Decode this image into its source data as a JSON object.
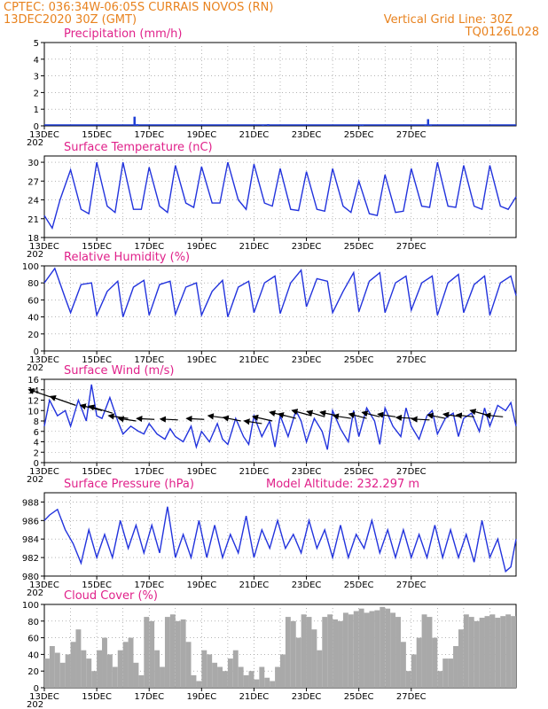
{
  "header": {
    "line1": "CPTEC:   036:34W-06:05S   CURRAIS NOVOS (RN)",
    "line2": "13DEC2020 30Z (GMT)",
    "grid_note": "Vertical Grid Line: 30Z",
    "run_code": "TQ0126L028"
  },
  "x_axis": {
    "labels": [
      "13DEC",
      "15DEC",
      "17DEC",
      "19DEC",
      "21DEC",
      "23DEC",
      "25DEC",
      "27DEC"
    ],
    "year_fragment": "202"
  },
  "colors": {
    "header": "#e8821e",
    "title": "#e0218a",
    "line": "#2233dd",
    "bar": "#1f3fd6",
    "cloud": "#a9a9a9",
    "grid": "#888888"
  },
  "chart_data": [
    {
      "type": "bar",
      "title": "Precipitation (mm/h)",
      "ylim": [
        0,
        5
      ],
      "yticks": [
        0,
        1,
        2,
        3,
        4,
        5
      ],
      "x_unit": "days since 13DEC",
      "x": [
        3.4,
        3.5,
        8.3,
        8.5,
        12.0,
        12.1,
        14.5,
        14.6,
        14.7
      ],
      "values": [
        0.55,
        0.1,
        0.05,
        0.1,
        0.05,
        0.03,
        0.05,
        0.4,
        0.05
      ]
    },
    {
      "type": "line",
      "title": "Surface Temperature (nC)",
      "ylim": [
        18,
        31
      ],
      "yticks": [
        18,
        21,
        24,
        27,
        30
      ],
      "x": [
        0.0,
        0.3,
        0.6,
        1.0,
        1.4,
        1.7,
        2.0,
        2.4,
        2.7,
        3.0,
        3.4,
        3.7,
        4.0,
        4.4,
        4.7,
        5.0,
        5.4,
        5.7,
        6.0,
        6.4,
        6.7,
        7.0,
        7.4,
        7.7,
        8.0,
        8.4,
        8.7,
        9.0,
        9.4,
        9.7,
        10.0,
        10.4,
        10.7,
        11.0,
        11.4,
        11.7,
        12.0,
        12.4,
        12.7,
        13.0,
        13.4,
        13.7,
        14.0,
        14.4,
        14.7,
        15.0,
        15.4,
        15.7,
        16.0,
        16.4,
        16.7,
        17.0,
        17.4,
        17.7,
        18.0
      ],
      "values": [
        21.5,
        19.5,
        24.0,
        28.8,
        22.5,
        21.8,
        30.0,
        23.0,
        22.0,
        30.0,
        22.5,
        22.5,
        29.2,
        23.0,
        22.0,
        29.5,
        23.5,
        22.8,
        29.3,
        23.5,
        23.5,
        30.0,
        24.0,
        22.5,
        29.7,
        23.5,
        23.0,
        29.0,
        22.5,
        22.3,
        28.5,
        22.5,
        22.2,
        29.0,
        23.0,
        22.0,
        27.0,
        21.8,
        21.5,
        28.0,
        22.0,
        22.2,
        29.0,
        23.0,
        22.8,
        30.0,
        23.0,
        22.8,
        29.5,
        23.0,
        22.5,
        29.5,
        23.0,
        22.5,
        24.5
      ]
    },
    {
      "type": "line",
      "title": "Relative Humidity (%)",
      "ylim": [
        0,
        100
      ],
      "yticks": [
        0,
        20,
        40,
        60,
        80,
        100
      ],
      "x": [
        0.0,
        0.4,
        0.8,
        1.0,
        1.4,
        1.8,
        2.0,
        2.4,
        2.8,
        3.0,
        3.4,
        3.8,
        4.0,
        4.4,
        4.8,
        5.0,
        5.4,
        5.8,
        6.0,
        6.4,
        6.8,
        7.0,
        7.4,
        7.8,
        8.0,
        8.4,
        8.8,
        9.0,
        9.4,
        9.8,
        10.0,
        10.4,
        10.8,
        11.0,
        11.4,
        11.8,
        12.0,
        12.4,
        12.8,
        13.0,
        13.4,
        13.8,
        14.0,
        14.4,
        14.8,
        15.0,
        15.4,
        15.8,
        16.0,
        16.4,
        16.8,
        17.0,
        17.4,
        17.8,
        18.0
      ],
      "values": [
        80,
        97,
        62,
        45,
        78,
        80,
        42,
        70,
        82,
        40,
        75,
        83,
        42,
        78,
        82,
        43,
        75,
        80,
        42,
        70,
        83,
        40,
        75,
        82,
        45,
        80,
        88,
        44,
        80,
        95,
        52,
        85,
        82,
        45,
        70,
        92,
        46,
        82,
        92,
        45,
        80,
        88,
        48,
        80,
        88,
        42,
        80,
        90,
        45,
        78,
        88,
        42,
        80,
        88,
        65
      ]
    },
    {
      "type": "line",
      "title": "Surface Wind (m/s)",
      "ylim": [
        0,
        16
      ],
      "yticks": [
        0,
        2,
        4,
        6,
        8,
        10,
        12,
        14,
        16
      ],
      "x": [
        0.0,
        0.2,
        0.5,
        0.8,
        1.0,
        1.3,
        1.6,
        1.8,
        2.0,
        2.2,
        2.5,
        2.8,
        3.0,
        3.3,
        3.6,
        3.8,
        4.0,
        4.3,
        4.6,
        4.8,
        5.0,
        5.3,
        5.6,
        5.8,
        6.0,
        6.3,
        6.6,
        6.8,
        7.0,
        7.3,
        7.6,
        7.8,
        8.0,
        8.3,
        8.6,
        8.8,
        9.0,
        9.3,
        9.6,
        9.8,
        10.0,
        10.3,
        10.6,
        10.8,
        11.0,
        11.3,
        11.6,
        11.8,
        12.0,
        12.3,
        12.6,
        12.8,
        13.0,
        13.3,
        13.6,
        13.8,
        14.0,
        14.3,
        14.6,
        14.8,
        15.0,
        15.3,
        15.6,
        15.8,
        16.0,
        16.3,
        16.6,
        16.8,
        17.0,
        17.3,
        17.6,
        17.8,
        18.0
      ],
      "values": [
        7.0,
        12.0,
        9.0,
        10.0,
        7.0,
        12.0,
        8.0,
        15.0,
        9.0,
        8.5,
        12.5,
        8.0,
        5.5,
        7.0,
        6.0,
        5.5,
        7.5,
        5.5,
        4.5,
        6.5,
        5.0,
        4.0,
        7.0,
        3.0,
        6.0,
        4.0,
        7.5,
        4.5,
        3.5,
        8.5,
        5.0,
        3.5,
        9.0,
        5.0,
        8.0,
        3.0,
        9.0,
        5.0,
        10.0,
        8.0,
        4.0,
        8.5,
        6.0,
        2.5,
        10.0,
        6.5,
        4.0,
        10.0,
        5.0,
        10.5,
        8.0,
        3.5,
        10.5,
        7.0,
        5.0,
        10.5,
        7.0,
        4.5,
        9.0,
        10.0,
        5.5,
        8.5,
        9.5,
        5.0,
        8.5,
        9.5,
        6.0,
        10.5,
        7.0,
        11.0,
        10.0,
        11.5,
        7.0
      ],
      "wind_vectors": {
        "x": [
          0.3,
          1.2,
          2.2,
          2.6,
          3.2,
          3.5,
          4.2,
          5.1,
          6.1,
          7.0,
          7.5,
          8.3,
          8.7,
          9.2,
          9.6,
          10.2,
          10.7,
          11.2,
          11.7,
          12.3,
          12.8,
          13.4,
          14.1,
          14.7,
          15.3,
          15.9,
          16.4,
          17.0,
          17.5
        ],
        "u": [
          -1.2,
          -1.3,
          -1.1,
          -1.2,
          -1.0,
          -0.9,
          -0.9,
          -0.9,
          -0.9,
          -1.0,
          -0.9,
          -0.9,
          -1.0,
          -0.8,
          -0.9,
          -1.0,
          -0.9,
          -0.9,
          -0.9,
          -0.9,
          -0.9,
          -0.9,
          -0.9,
          -0.9,
          -0.9,
          -0.9,
          -0.9,
          -1.0,
          -0.9
        ],
        "v": [
          0.9,
          1.0,
          0.6,
          0.8,
          0.3,
          0.3,
          0.1,
          0.1,
          0.1,
          0.3,
          0.4,
          0.3,
          0.5,
          0.4,
          0.5,
          0.6,
          0.6,
          0.4,
          0.3,
          0.5,
          0.5,
          0.3,
          0.1,
          0.1,
          0.4,
          0.3,
          0.2,
          0.6,
          0.2
        ],
        "base": [
          12.5,
          11.0,
          10.0,
          9.5,
          8.5,
          8.0,
          8.3,
          8.2,
          8.3,
          8.5,
          8.0,
          7.5,
          8.0,
          9.0,
          8.5,
          9.0,
          8.8,
          9.0,
          8.5,
          8.5,
          8.8,
          8.8,
          8.5,
          8.2,
          8.5,
          8.8,
          8.8,
          9.0,
          8.8
        ]
      }
    },
    {
      "type": "line",
      "title": "Surface Pressure (hPa)",
      "annotation": "Model Altitude: 232.297 m",
      "ylim": [
        980,
        989
      ],
      "yticks": [
        980,
        982,
        984,
        986,
        988
      ],
      "x": [
        0.0,
        0.2,
        0.5,
        0.8,
        1.1,
        1.4,
        1.7,
        2.0,
        2.3,
        2.6,
        2.9,
        3.2,
        3.5,
        3.8,
        4.1,
        4.4,
        4.7,
        5.0,
        5.3,
        5.6,
        5.9,
        6.2,
        6.5,
        6.8,
        7.1,
        7.4,
        7.7,
        8.0,
        8.3,
        8.6,
        8.9,
        9.2,
        9.5,
        9.8,
        10.1,
        10.4,
        10.7,
        11.0,
        11.3,
        11.6,
        11.9,
        12.2,
        12.5,
        12.8,
        13.1,
        13.4,
        13.7,
        14.0,
        14.3,
        14.6,
        14.9,
        15.2,
        15.5,
        15.8,
        16.1,
        16.4,
        16.7,
        17.0,
        17.3,
        17.6,
        17.8,
        18.0
      ],
      "values": [
        986.0,
        986.6,
        987.2,
        985.0,
        983.5,
        981.4,
        985.0,
        982.0,
        984.5,
        982.0,
        986.0,
        983.0,
        985.5,
        982.5,
        985.5,
        982.5,
        987.5,
        982.0,
        984.5,
        982.0,
        986.0,
        982.0,
        985.5,
        982.0,
        984.5,
        982.5,
        986.5,
        982.0,
        985.0,
        983.0,
        986.0,
        983.0,
        984.5,
        982.5,
        986.0,
        983.0,
        985.0,
        982.0,
        985.5,
        982.0,
        984.5,
        983.0,
        986.0,
        982.5,
        985.0,
        982.0,
        985.0,
        982.0,
        984.5,
        982.0,
        985.5,
        982.0,
        985.0,
        982.0,
        984.5,
        981.5,
        986.0,
        982.0,
        984.0,
        980.5,
        981.0,
        984.0
      ]
    },
    {
      "type": "bar",
      "title": "Cloud Cover (%)",
      "ylim": [
        0,
        100
      ],
      "yticks": [
        0,
        20,
        40,
        60,
        80,
        100
      ],
      "x": [
        0.0,
        0.2,
        0.4,
        0.6,
        0.8,
        1.0,
        1.2,
        1.4,
        1.6,
        1.8,
        2.0,
        2.2,
        2.4,
        2.6,
        2.8,
        3.0,
        3.2,
        3.4,
        3.6,
        3.8,
        4.0,
        4.2,
        4.4,
        4.6,
        4.8,
        5.0,
        5.2,
        5.4,
        5.6,
        5.8,
        6.0,
        6.2,
        6.4,
        6.6,
        6.8,
        7.0,
        7.2,
        7.4,
        7.6,
        7.8,
        8.0,
        8.2,
        8.4,
        8.6,
        8.8,
        9.0,
        9.2,
        9.4,
        9.6,
        9.8,
        10.0,
        10.2,
        10.4,
        10.6,
        10.8,
        11.0,
        11.2,
        11.4,
        11.6,
        11.8,
        12.0,
        12.2,
        12.4,
        12.6,
        12.8,
        13.0,
        13.2,
        13.4,
        13.6,
        13.8,
        14.0,
        14.2,
        14.4,
        14.6,
        14.8,
        15.0,
        15.2,
        15.4,
        15.6,
        15.8,
        16.0,
        16.2,
        16.4,
        16.6,
        16.8,
        17.0,
        17.2,
        17.4,
        17.6,
        17.8
      ],
      "values": [
        35,
        50,
        42,
        30,
        40,
        55,
        70,
        45,
        35,
        20,
        45,
        60,
        40,
        25,
        45,
        55,
        60,
        30,
        15,
        85,
        80,
        45,
        25,
        85,
        88,
        80,
        82,
        55,
        15,
        8,
        45,
        40,
        30,
        25,
        20,
        35,
        45,
        25,
        15,
        20,
        10,
        25,
        12,
        8,
        25,
        40,
        85,
        80,
        60,
        88,
        85,
        70,
        45,
        85,
        88,
        82,
        80,
        90,
        88,
        92,
        95,
        90,
        92,
        93,
        97,
        95,
        90,
        85,
        55,
        20,
        40,
        60,
        88,
        85,
        60,
        20,
        35,
        35,
        50,
        70,
        88,
        85,
        80,
        84,
        86,
        88,
        84,
        86,
        88,
        86
      ]
    }
  ]
}
